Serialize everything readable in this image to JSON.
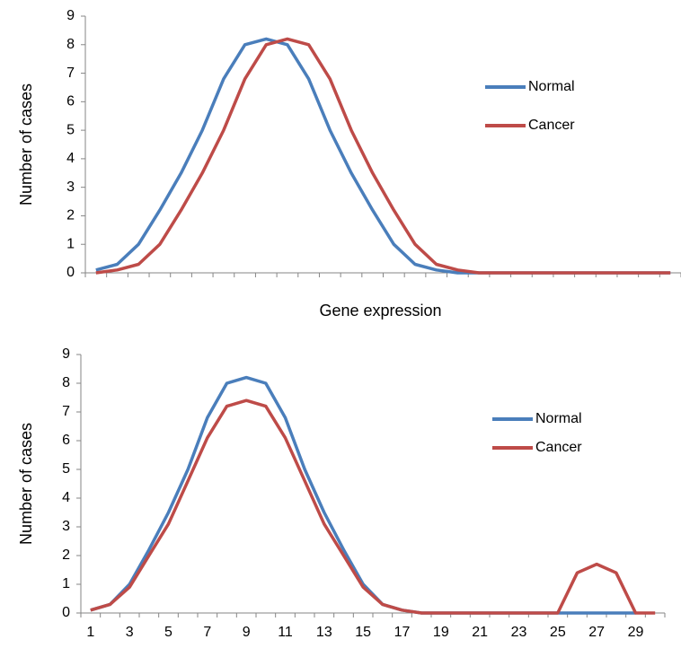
{
  "chart_data": [
    {
      "type": "line",
      "y_label": "Number of cases",
      "x_label": "Gene expression",
      "ylim": [
        0,
        9
      ],
      "yticks": [
        0,
        1,
        2,
        3,
        4,
        5,
        6,
        7,
        8,
        9
      ],
      "legend": "right",
      "series": [
        {
          "name": "Normal",
          "color": "#4a7ebb",
          "values": [
            0.1,
            0.3,
            1,
            2.2,
            3.5,
            5,
            6.8,
            8,
            8.2,
            8,
            6.8,
            5,
            3.5,
            2.2,
            1,
            0.3,
            0.1,
            0,
            0,
            0,
            0,
            0,
            0,
            0,
            0,
            0,
            0,
            0
          ]
        },
        {
          "name": "Cancer",
          "color": "#be4b48",
          "values": [
            0,
            0.1,
            0.3,
            1,
            2.2,
            3.5,
            5,
            6.8,
            8,
            8.2,
            8,
            6.8,
            5,
            3.5,
            2.2,
            1,
            0.3,
            0.1,
            0,
            0,
            0,
            0,
            0,
            0,
            0,
            0,
            0,
            0
          ]
        }
      ]
    },
    {
      "type": "line",
      "y_label": "Number of cases",
      "ylim": [
        0,
        9
      ],
      "yticks": [
        0,
        1,
        2,
        3,
        4,
        5,
        6,
        7,
        8,
        9
      ],
      "legend": "right",
      "categories": [
        "1",
        null,
        "3",
        null,
        "5",
        null,
        "7",
        null,
        "9",
        null,
        "11",
        null,
        "13",
        null,
        "15",
        null,
        "17",
        null,
        "19",
        null,
        "21",
        null,
        "23",
        null,
        "25",
        null,
        "27",
        null,
        "29",
        null
      ],
      "series": [
        {
          "name": "Normal",
          "color": "#4a7ebb",
          "values": [
            0.1,
            0.3,
            1,
            2.2,
            3.5,
            5,
            6.8,
            8,
            8.2,
            8,
            6.8,
            5,
            3.5,
            2.2,
            1,
            0.3,
            0.1,
            0,
            0,
            0,
            0,
            0,
            0,
            0,
            0,
            0,
            0,
            0,
            0,
            null
          ]
        },
        {
          "name": "Cancer",
          "color": "#be4b48",
          "values": [
            0.1,
            0.3,
            0.9,
            2,
            3.1,
            4.6,
            6.1,
            7.2,
            7.4,
            7.2,
            6.1,
            4.6,
            3.1,
            2,
            0.9,
            0.3,
            0.1,
            0,
            0,
            0,
            0,
            0,
            0,
            0,
            0,
            1.4,
            1.7,
            1.4,
            0,
            0
          ]
        }
      ]
    }
  ]
}
